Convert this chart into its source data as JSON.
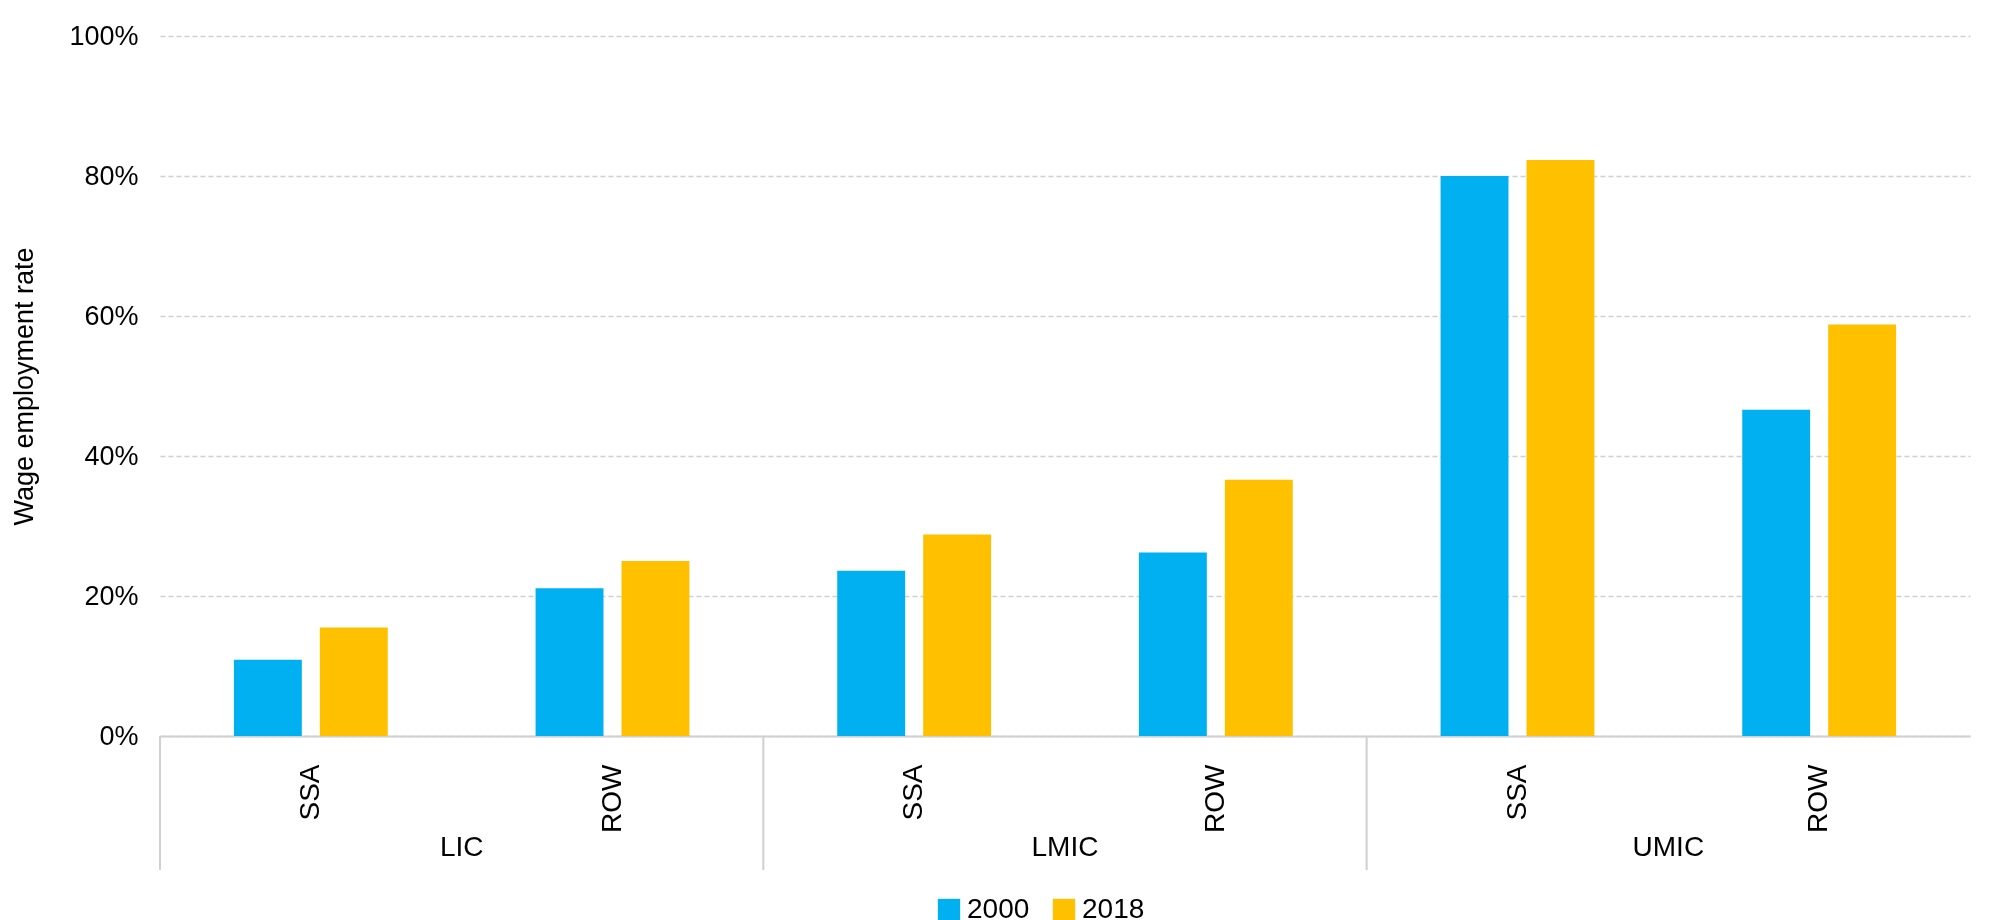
{
  "chart_data": {
    "type": "bar",
    "ylabel": "Wage employment rate",
    "categories": [
      "SSA",
      "ROW",
      "SSA",
      "ROW",
      "SSA",
      "ROW"
    ],
    "series": [
      {
        "name": "2000",
        "color": "#00b0f0",
        "values": [
          10.9,
          21.1,
          23.6,
          26.2,
          80.0,
          46.6
        ]
      },
      {
        "name": "2018",
        "color": "#ffc000",
        "values": [
          15.5,
          25.0,
          28.8,
          36.6,
          82.3,
          58.8
        ]
      }
    ],
    "annotations": [
      "LIC",
      "LMIC",
      "UMIC"
    ],
    "ylim": [
      0,
      100
    ],
    "yticks": [
      {
        "value": 0,
        "label": "0%"
      },
      {
        "value": 20,
        "label": "20%"
      },
      {
        "value": 40,
        "label": "40%"
      },
      {
        "value": 60,
        "label": "60%"
      },
      {
        "value": 80,
        "label": "80%"
      },
      {
        "value": 100,
        "label": "100%"
      }
    ],
    "grid": "y",
    "legend": "bottom"
  }
}
